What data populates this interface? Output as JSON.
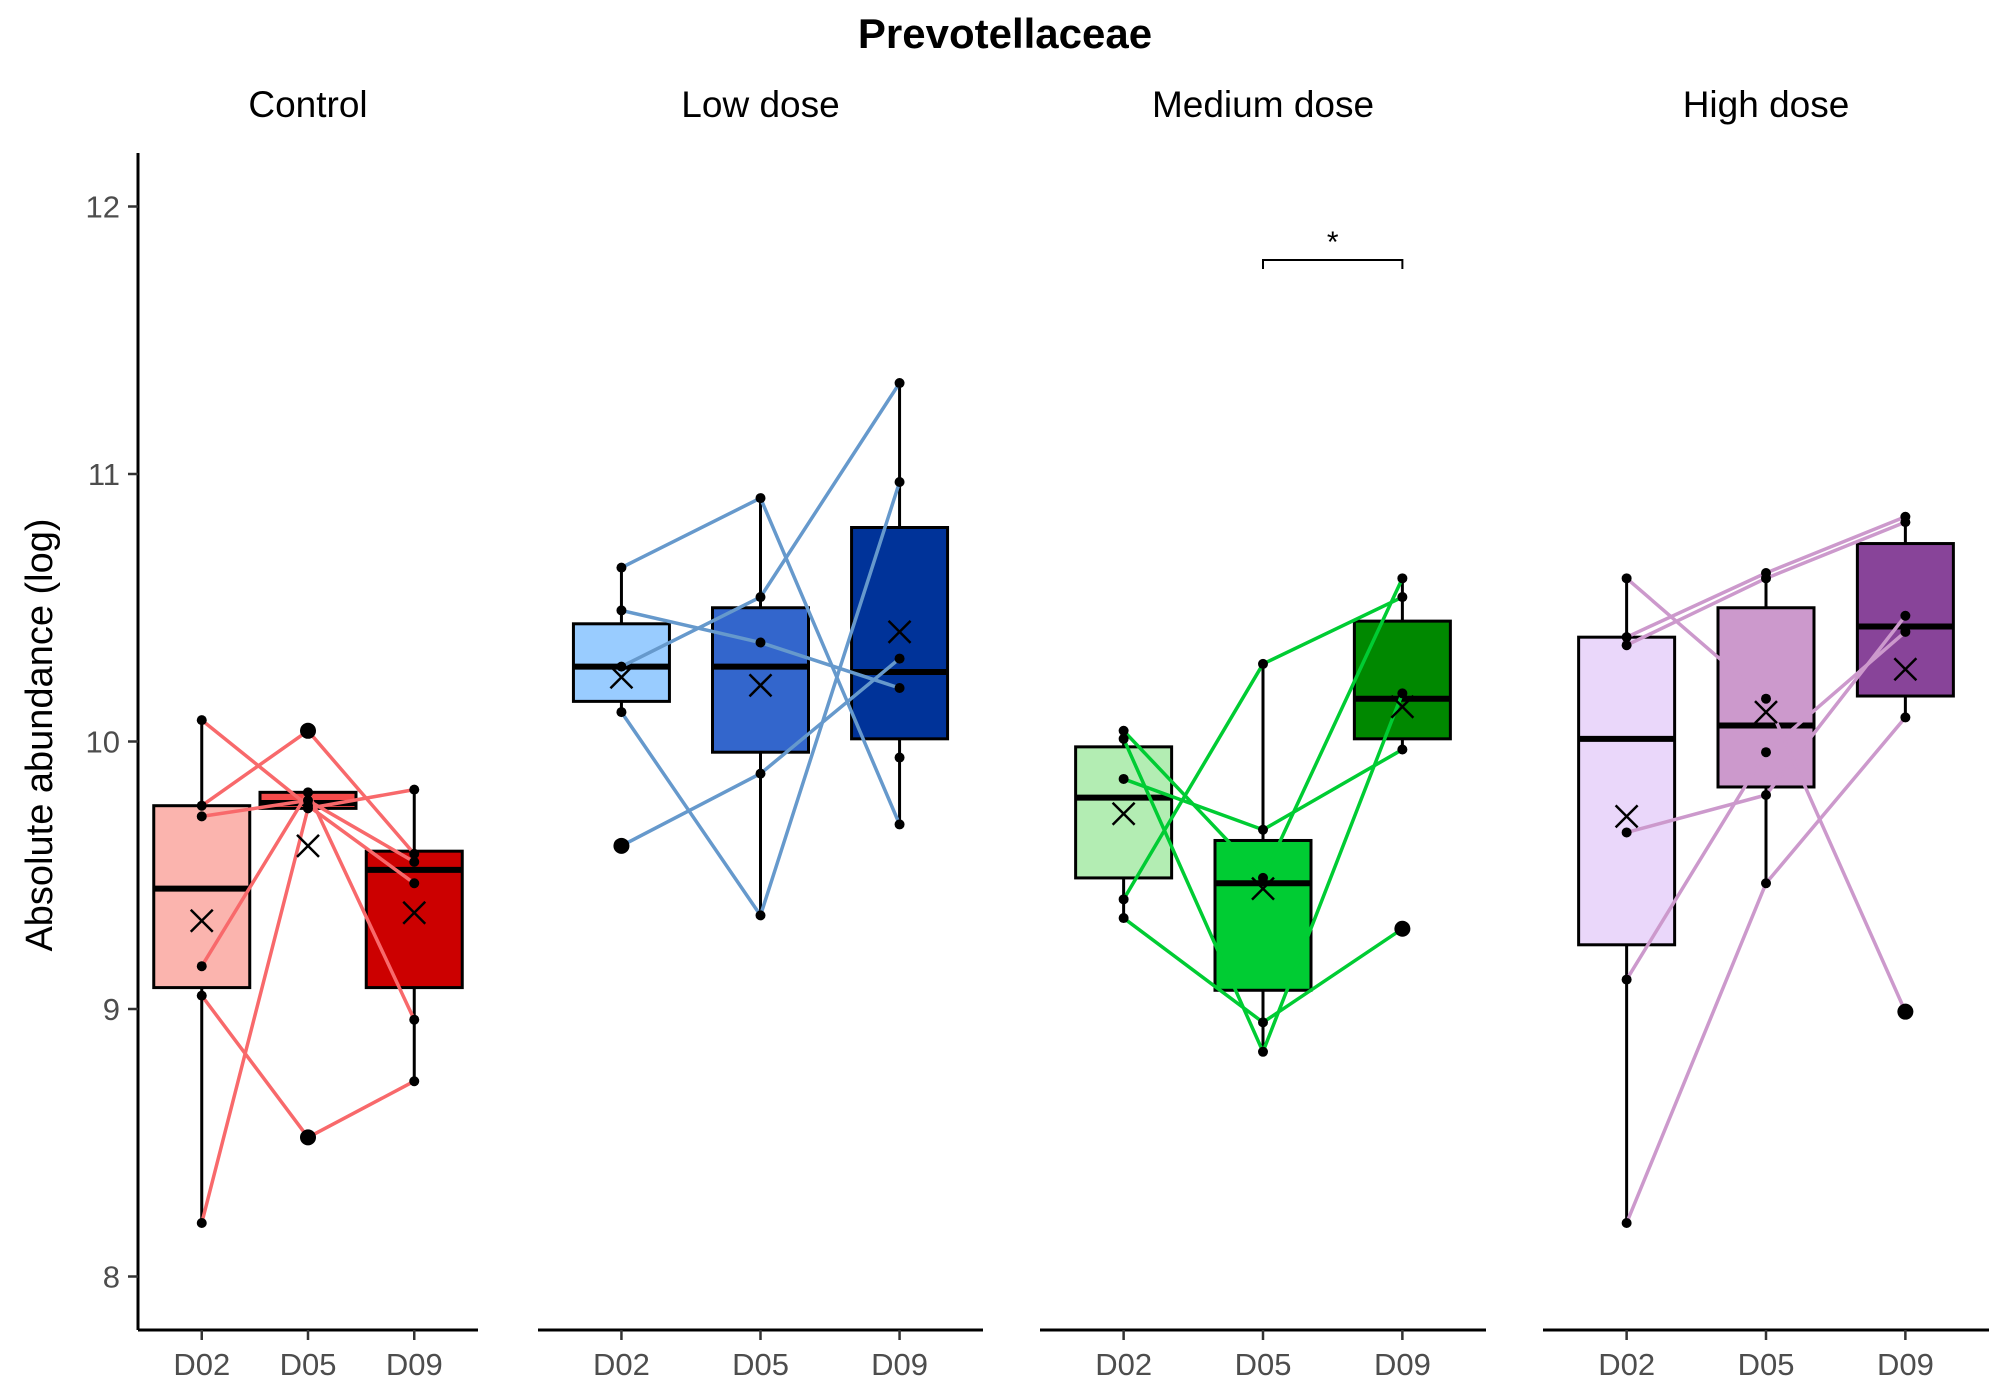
{
  "chart_data": {
    "type": "box",
    "title": "Prevotellaceae",
    "ylabel": "Absolute abundance (log)",
    "xlabel": "",
    "ylim": [
      7.8,
      12.2
    ],
    "yticks": [
      8,
      9,
      10,
      11,
      12
    ],
    "categories": [
      "D02",
      "D05",
      "D09"
    ],
    "grid": false,
    "legend": "none",
    "facets": [
      {
        "name": "Control",
        "line_color": "#f8696b",
        "boxes": [
          {
            "x": "D02",
            "color": "#fbb4ae",
            "q1": 9.08,
            "median": 9.45,
            "q3": 9.76,
            "whisker_low": 8.2,
            "whisker_high": 10.08,
            "mean": 9.33,
            "outliers": [],
            "points": [
              10.08,
              9.76,
              9.72,
              9.16,
              9.05,
              8.2
            ]
          },
          {
            "x": "D05",
            "color": "#f44a4a",
            "q1": 9.75,
            "median": 9.77,
            "q3": 9.81,
            "whisker_low": 9.75,
            "whisker_high": 9.81,
            "mean": 9.61,
            "outliers": [
              10.04,
              8.52
            ],
            "points": [
              10.04,
              9.81,
              9.78,
              9.76,
              9.75,
              8.52
            ]
          },
          {
            "x": "D09",
            "color": "#cc0000",
            "q1": 9.08,
            "median": 9.52,
            "q3": 9.59,
            "whisker_low": 8.73,
            "whisker_high": 9.82,
            "mean": 9.36,
            "outliers": [],
            "points": [
              9.82,
              9.58,
              9.47,
              9.55,
              8.96,
              8.73
            ]
          }
        ],
        "lines": [
          [
            10.08,
            9.76,
            9.47
          ],
          [
            9.76,
            10.04,
            9.58
          ],
          [
            9.72,
            9.78,
            9.55
          ],
          [
            9.16,
            9.81,
            8.96
          ],
          [
            9.05,
            8.52,
            8.73
          ],
          [
            8.2,
            9.75,
            9.82
          ]
        ]
      },
      {
        "name": "Low dose",
        "line_color": "#6699cc",
        "boxes": [
          {
            "x": "D02",
            "color": "#99ccff",
            "q1": 10.15,
            "median": 10.28,
            "q3": 10.44,
            "whisker_low": 10.11,
            "whisker_high": 10.65,
            "mean": 10.24,
            "outliers": [
              9.61
            ],
            "points": [
              10.65,
              10.49,
              10.28,
              10.11,
              9.61
            ]
          },
          {
            "x": "D05",
            "color": "#3366cc",
            "q1": 9.96,
            "median": 10.28,
            "q3": 10.5,
            "whisker_low": 9.35,
            "whisker_high": 10.91,
            "mean": 10.21,
            "outliers": [],
            "points": [
              10.91,
              10.54,
              10.37,
              9.88,
              9.35
            ]
          },
          {
            "x": "D09",
            "color": "#003399",
            "q1": 10.01,
            "median": 10.26,
            "q3": 10.8,
            "whisker_low": 9.69,
            "whisker_high": 11.34,
            "mean": 10.41,
            "outliers": [],
            "points": [
              11.34,
              10.97,
              10.31,
              10.2,
              9.94,
              9.69
            ]
          }
        ],
        "lines": [
          [
            10.65,
            10.91,
            9.69
          ],
          [
            10.49,
            10.37,
            10.2
          ],
          [
            10.28,
            10.54,
            11.34
          ],
          [
            10.11,
            9.35,
            10.97
          ],
          [
            9.61,
            9.88,
            10.31
          ]
        ]
      },
      {
        "name": "Medium dose",
        "line_color": "#00cc33",
        "boxes": [
          {
            "x": "D02",
            "color": "#b3edb3",
            "q1": 9.49,
            "median": 9.79,
            "q3": 9.98,
            "whisker_low": 9.34,
            "whisker_high": 10.04,
            "mean": 9.73,
            "outliers": [],
            "points": [
              10.04,
              10.01,
              9.86,
              9.41,
              9.34
            ]
          },
          {
            "x": "D05",
            "color": "#00cc33",
            "q1": 9.07,
            "median": 9.47,
            "q3": 9.63,
            "whisker_low": 8.84,
            "whisker_high": 10.29,
            "mean": 9.45,
            "outliers": [],
            "points": [
              10.29,
              9.67,
              9.49,
              8.95,
              8.84
            ]
          },
          {
            "x": "D09",
            "color": "#008800",
            "q1": 10.01,
            "median": 10.16,
            "q3": 10.45,
            "whisker_low": 9.97,
            "whisker_high": 10.61,
            "mean": 10.13,
            "outliers": [
              9.3
            ],
            "points": [
              10.61,
              10.54,
              10.18,
              9.97,
              9.3
            ]
          }
        ],
        "lines": [
          [
            10.04,
            9.49,
            10.61
          ],
          [
            10.01,
            8.84,
            10.18
          ],
          [
            9.86,
            9.67,
            9.97
          ],
          [
            9.41,
            10.29,
            10.54
          ],
          [
            9.34,
            8.95,
            9.3
          ]
        ]
      },
      {
        "name": "High dose",
        "line_color": "#cc99cc",
        "boxes": [
          {
            "x": "D02",
            "color": "#ead7fa",
            "q1": 9.24,
            "median": 10.01,
            "q3": 10.39,
            "whisker_low": 8.2,
            "whisker_high": 10.61,
            "mean": 9.72,
            "outliers": [],
            "points": [
              10.61,
              10.39,
              10.36,
              9.66,
              9.11,
              8.2
            ]
          },
          {
            "x": "D05",
            "color": "#cc99cc",
            "q1": 9.83,
            "median": 10.06,
            "q3": 10.5,
            "whisker_low": 9.47,
            "whisker_high": 10.63,
            "mean": 10.11,
            "outliers": [],
            "points": [
              10.63,
              10.61,
              10.16,
              9.96,
              9.8,
              9.47
            ]
          },
          {
            "x": "D09",
            "color": "#884499",
            "q1": 10.17,
            "median": 10.43,
            "q3": 10.74,
            "whisker_low": 10.09,
            "whisker_high": 10.84,
            "mean": 10.27,
            "outliers": [
              8.99
            ],
            "points": [
              10.84,
              10.82,
              10.47,
              10.41,
              10.09,
              8.99
            ]
          }
        ],
        "lines": [
          [
            10.61,
            10.16,
            8.99
          ],
          [
            10.39,
            10.63,
            10.84
          ],
          [
            10.36,
            10.61,
            10.82
          ],
          [
            9.66,
            9.8,
            10.47
          ],
          [
            9.11,
            9.96,
            10.41
          ],
          [
            8.2,
            9.47,
            10.09
          ]
        ]
      }
    ],
    "significance": [
      {
        "facet": "Medium dose",
        "from": "D05",
        "to": "D09",
        "y": 11.8,
        "label": "*"
      }
    ]
  }
}
